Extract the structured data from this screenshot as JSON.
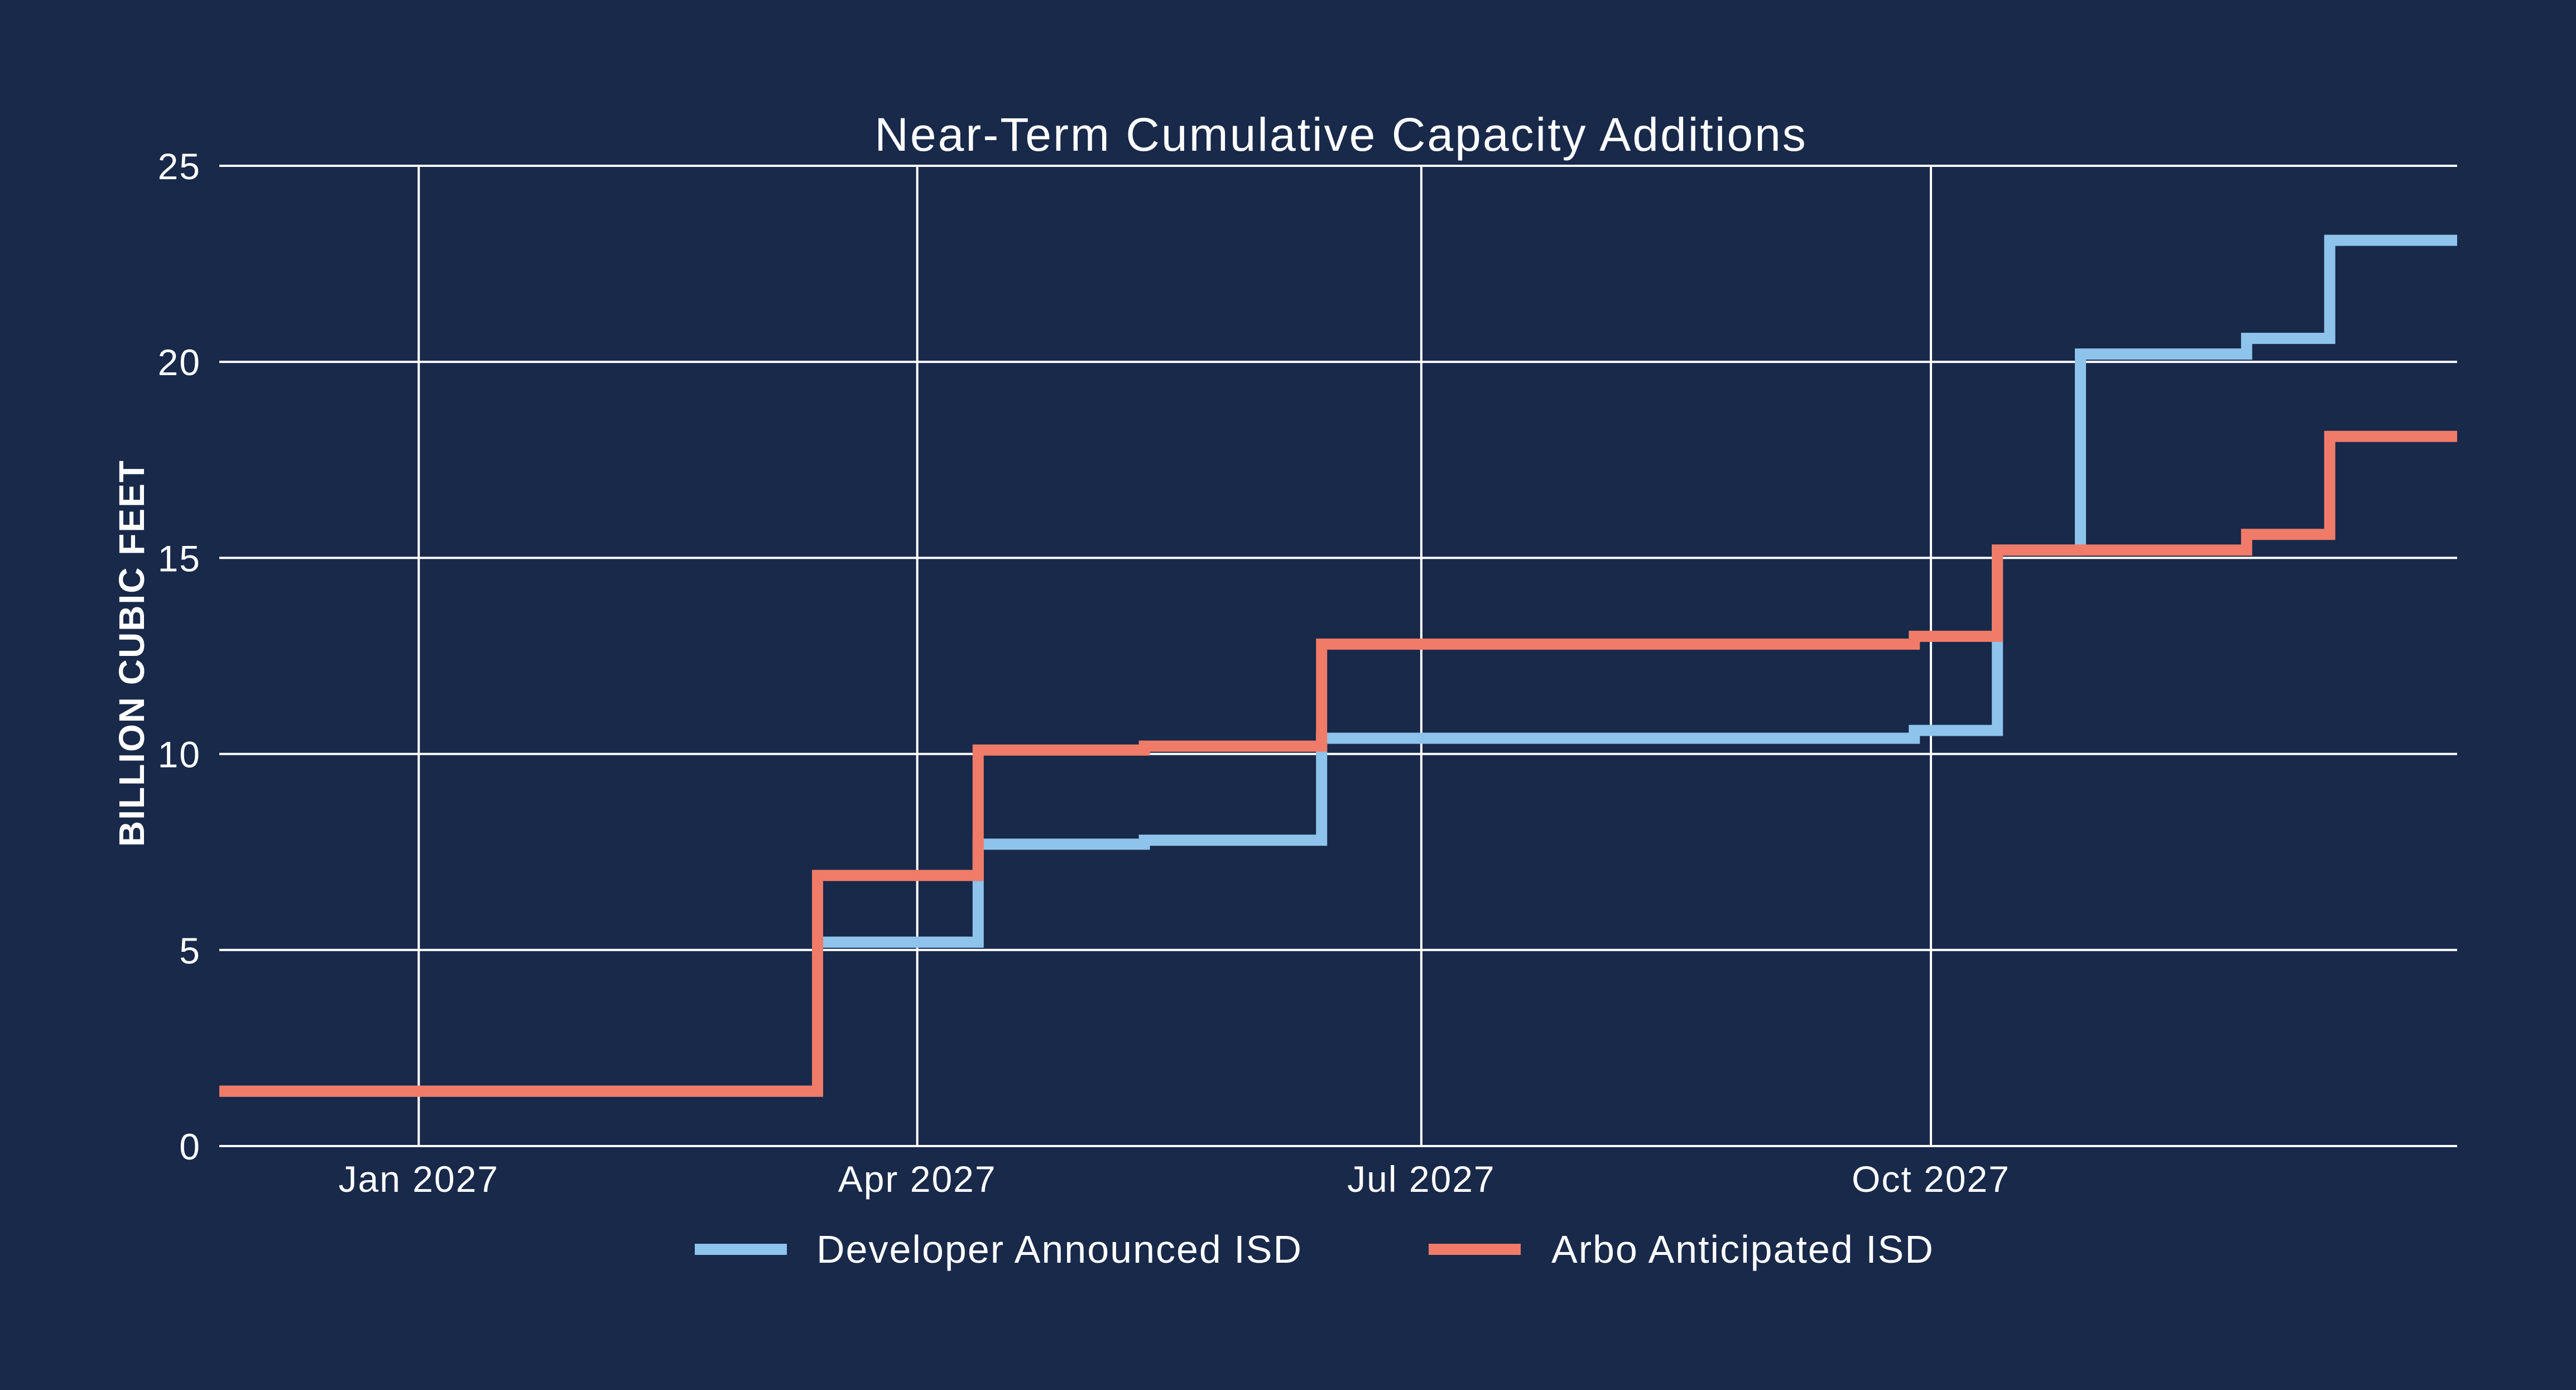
{
  "chart_data": {
    "type": "line",
    "step": true,
    "title": "Near-Term Cumulative Capacity Additions",
    "xlabel": "",
    "ylabel": "BILLION CUBIC FEET",
    "xlim": [
      "2026-11-26",
      "2028-01-04"
    ],
    "ylim": [
      0,
      25
    ],
    "x_ticks": [
      {
        "date": "2027-01-01",
        "label": "Jan 2027"
      },
      {
        "date": "2027-04-01",
        "label": "Apr 2027"
      },
      {
        "date": "2027-07-01",
        "label": "Jul 2027"
      },
      {
        "date": "2027-10-01",
        "label": "Oct 2027"
      }
    ],
    "y_ticks": [
      0,
      5,
      10,
      15,
      20,
      25
    ],
    "grid": true,
    "legend_position": "bottom",
    "series": [
      {
        "name": "Developer Announced ISD",
        "color": "#8ec3ec",
        "points": [
          [
            "2026-11-26",
            1.4
          ],
          [
            "2027-03-14",
            5.2
          ],
          [
            "2027-04-12",
            7.7
          ],
          [
            "2027-05-12",
            7.8
          ],
          [
            "2027-06-13",
            10.4
          ],
          [
            "2027-09-28",
            10.6
          ],
          [
            "2027-10-13",
            15.2
          ],
          [
            "2027-10-28",
            20.2
          ],
          [
            "2027-11-27",
            20.6
          ],
          [
            "2027-12-12",
            23.1
          ],
          [
            "2028-01-04",
            23.1
          ]
        ]
      },
      {
        "name": "Arbo Anticipated ISD",
        "color": "#f07b68",
        "points": [
          [
            "2026-11-26",
            1.4
          ],
          [
            "2027-03-14",
            6.9
          ],
          [
            "2027-04-12",
            10.1
          ],
          [
            "2027-05-12",
            10.2
          ],
          [
            "2027-06-13",
            12.8
          ],
          [
            "2027-09-28",
            13.0
          ],
          [
            "2027-10-13",
            15.2
          ],
          [
            "2027-11-27",
            15.6
          ],
          [
            "2027-12-12",
            18.1
          ],
          [
            "2028-01-04",
            18.1
          ]
        ]
      }
    ]
  }
}
